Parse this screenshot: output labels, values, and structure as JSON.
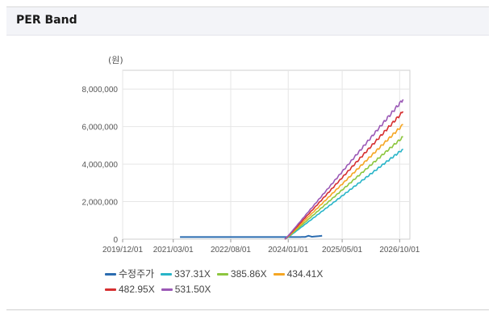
{
  "panel": {
    "title": "PER Band"
  },
  "chart_data": {
    "type": "line",
    "unit_label": "(원)",
    "x_ticks": [
      "2019/12/01",
      "2021/03/01",
      "2022/08/01",
      "2024/01/01",
      "2025/05/01",
      "2026/10/01"
    ],
    "x_range": [
      "2019/12/01",
      "2027/01/01"
    ],
    "ylim": [
      0,
      9000000
    ],
    "y_ticks": [
      0,
      2000000,
      4000000,
      6000000,
      8000000
    ],
    "y_tick_labels": [
      "0",
      "2,000,000",
      "4,000,000",
      "6,000,000",
      "8,000,000"
    ],
    "grid": true,
    "legend_position": "bottom",
    "series": [
      {
        "name": "수정주가",
        "color": "#2b6cb0",
        "points": [
          [
            "2021/05/01",
            110000
          ],
          [
            "2023/12/01",
            110000
          ],
          [
            "2024/06/01",
            115000
          ],
          [
            "2024/07/01",
            180000
          ],
          [
            "2024/08/01",
            130000
          ],
          [
            "2024/10/01",
            160000
          ],
          [
            "2024/11/01",
            180000
          ]
        ]
      },
      {
        "name": "337.31X",
        "color": "#28b4c8",
        "points": [
          [
            "2023/12/01",
            0
          ],
          [
            "2024/01/01",
            100000
          ],
          [
            "2026/11/01",
            4800000
          ]
        ]
      },
      {
        "name": "385.86X",
        "color": "#8dc63f",
        "points": [
          [
            "2023/12/01",
            0
          ],
          [
            "2024/01/01",
            120000
          ],
          [
            "2026/11/01",
            5450000
          ]
        ]
      },
      {
        "name": "434.41X",
        "color": "#f5a623",
        "points": [
          [
            "2023/12/01",
            0
          ],
          [
            "2024/01/01",
            140000
          ],
          [
            "2026/11/01",
            6100000
          ]
        ]
      },
      {
        "name": "482.95X",
        "color": "#d63031",
        "points": [
          [
            "2023/12/01",
            0
          ],
          [
            "2024/01/01",
            160000
          ],
          [
            "2026/11/01",
            6800000
          ]
        ]
      },
      {
        "name": "531.50X",
        "color": "#9b59b6",
        "points": [
          [
            "2023/12/01",
            0
          ],
          [
            "2024/01/01",
            180000
          ],
          [
            "2026/11/01",
            7450000
          ]
        ]
      }
    ]
  }
}
